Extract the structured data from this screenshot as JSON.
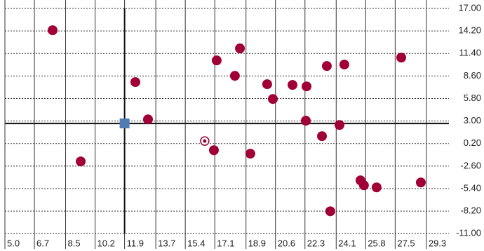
{
  "chart_data": {
    "type": "scatter",
    "x": [
      7.75,
      9.37,
      12.52,
      13.25,
      17.05,
      17.21,
      18.26,
      18.55,
      19.15,
      20.12,
      20.45,
      21.58,
      22.39,
      22.35,
      23.28,
      23.56,
      23.76,
      24.29,
      24.57,
      25.5,
      25.7,
      26.43,
      27.85,
      28.98
    ],
    "values": [
      14.29,
      -2.02,
      7.84,
      3.21,
      -0.63,
      10.54,
      8.62,
      12.03,
      -1.06,
      7.58,
      5.74,
      7.49,
      7.31,
      3.04,
      1.12,
      9.84,
      -8.22,
      2.51,
      10.02,
      -4.38,
      -4.99,
      -5.25,
      10.89,
      -4.64
    ],
    "color": "#a00035",
    "highlight": {
      "x": 16.52,
      "y": 0.51,
      "color": "#a00035"
    },
    "crosshair": {
      "x": 11.9,
      "y": 2.7,
      "color": "#4f7db3"
    },
    "xlim": [
      5,
      30.6
    ],
    "ylim": [
      -12.9,
      18.05
    ],
    "xticks": [
      {
        "value": 5,
        "label": "5.0"
      },
      6.7,
      8.5,
      10.2,
      11.9,
      13.7,
      15.4,
      17.1,
      18.9,
      20.6,
      22.3,
      24.1,
      25.8,
      27.5,
      29.3
    ],
    "yticks": [
      {
        "value": 17,
        "label": "17.00"
      },
      {
        "value": 14.2,
        "label": "14.20"
      },
      {
        "value": 11.4,
        "label": "11.40"
      },
      {
        "value": 8.6,
        "label": "8.60"
      },
      {
        "value": 5.8,
        "label": "5.80"
      },
      {
        "value": 3,
        "label": "3.00"
      },
      {
        "value": 0.2,
        "label": "0.20"
      },
      {
        "value": -2.6,
        "label": "-2.60"
      },
      {
        "value": -5.4,
        "label": "-5.40"
      },
      {
        "value": -8.2,
        "label": "-8.20"
      },
      {
        "value": -11,
        "label": "-11.00"
      }
    ],
    "grid": true
  }
}
